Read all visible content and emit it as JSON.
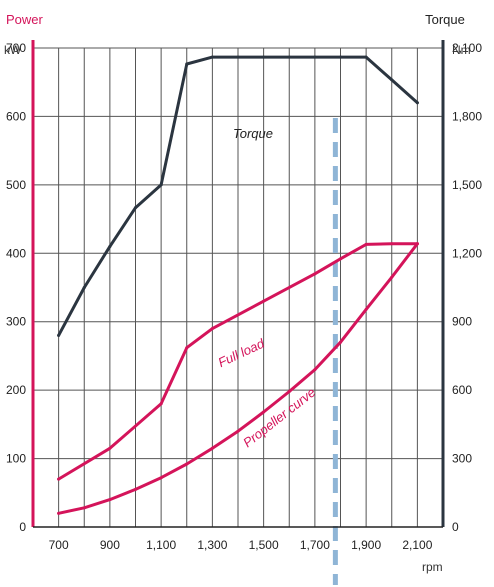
{
  "chart_data": {
    "type": "line",
    "left_axis_title": "Power",
    "right_axis_title": "Torque",
    "left_unit": "kW",
    "right_unit": "Nm",
    "x_unit": "rpm",
    "x_ticks": [
      "700",
      "900",
      "1,100",
      "1,300",
      "1,500",
      "1,700",
      "1,900",
      "2,100"
    ],
    "y_left_ticks": [
      "0",
      "100",
      "200",
      "300",
      "400",
      "500",
      "600",
      "700"
    ],
    "y_right_ticks": [
      "0",
      "300",
      "600",
      "900",
      "1,200",
      "1,500",
      "1,800",
      "2,100"
    ],
    "xlim": [
      600,
      2200
    ],
    "ylim_left": [
      0,
      700
    ],
    "ylim_right": [
      0,
      2100
    ],
    "grid": true,
    "reference_line_x": 1780,
    "series": [
      {
        "name": "Torque",
        "axis": "right",
        "color": "#2b3540",
        "x": [
          700,
          800,
          900,
          1000,
          1100,
          1200,
          1300,
          1400,
          1500,
          1600,
          1700,
          1800,
          1900,
          2000,
          2100
        ],
        "y": [
          840,
          1050,
          1230,
          1400,
          1500,
          2030,
          2060,
          2060,
          2060,
          2060,
          2060,
          2060,
          2060,
          1960,
          1860
        ]
      },
      {
        "name": "Full load",
        "axis": "left",
        "color": "#d4145a",
        "x": [
          700,
          900,
          1100,
          1200,
          1300,
          1500,
          1700,
          1800,
          1900,
          2000,
          2100
        ],
        "y": [
          70,
          115,
          180,
          262,
          290,
          330,
          370,
          392,
          413,
          414,
          414
        ]
      },
      {
        "name": "Propeller curve",
        "axis": "left",
        "color": "#d4145a",
        "x": [
          700,
          800,
          900,
          1000,
          1100,
          1200,
          1300,
          1400,
          1500,
          1600,
          1700,
          1800,
          1900,
          2000,
          2100
        ],
        "y": [
          20,
          28,
          40,
          55,
          72,
          92,
          115,
          140,
          168,
          198,
          230,
          270,
          318,
          365,
          414
        ]
      }
    ],
    "annotations": {
      "torque": "Torque",
      "full_load": "Full load",
      "propeller": "Propeller curve"
    },
    "colors": {
      "power_axis": "#d4145a",
      "torque_axis": "#2b3540",
      "reference_line": "#8fb5d6",
      "grid": "#555555"
    }
  }
}
